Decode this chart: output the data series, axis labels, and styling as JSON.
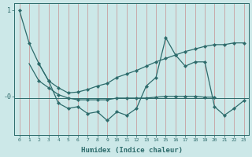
{
  "xlabel": "Humidex (Indice chaleur)",
  "x": [
    0,
    1,
    2,
    3,
    4,
    5,
    6,
    7,
    8,
    9,
    10,
    11,
    12,
    13,
    14,
    15,
    16,
    17,
    18,
    19,
    20,
    21,
    22,
    23
  ],
  "line_zigzag": [
    1.0,
    0.62,
    0.38,
    0.18,
    -0.08,
    -0.14,
    -0.12,
    -0.2,
    -0.18,
    -0.28,
    -0.18,
    -0.22,
    -0.14,
    0.12,
    0.22,
    0.68,
    0.48,
    0.35,
    0.4,
    0.4,
    -0.12,
    -0.22,
    -0.14,
    -0.05
  ],
  "line_rising": [
    null,
    null,
    0.38,
    0.18,
    0.1,
    0.04,
    0.05,
    0.08,
    0.12,
    0.15,
    0.22,
    0.26,
    0.3,
    0.35,
    0.4,
    0.44,
    0.48,
    0.52,
    0.55,
    0.58,
    0.6,
    0.6,
    0.62,
    0.62
  ],
  "line_flat": [
    null,
    null,
    0.18,
    0.1,
    0.02,
    -0.02,
    -0.04,
    -0.04,
    -0.04,
    -0.04,
    -0.02,
    -0.02,
    -0.02,
    -0.02,
    -0.01,
    0.0,
    0.0,
    0.0,
    0.0,
    -0.01,
    -0.01,
    null,
    null,
    null
  ],
  "line_short": [
    null,
    0.38,
    0.18,
    null,
    null,
    null,
    null,
    null,
    null,
    null,
    null,
    null,
    null,
    null,
    null,
    null,
    null,
    null,
    null,
    null,
    null,
    null,
    null,
    null
  ],
  "hline_y": -0.02,
  "bg_color": "#cce8e8",
  "line_color": "#2d6b6b",
  "grid_color": "#c8a0a0",
  "ylim": [
    -0.45,
    1.08
  ],
  "ytick_vals": [
    1.0,
    0.0
  ],
  "ytick_labels": [
    "1",
    "-0"
  ]
}
